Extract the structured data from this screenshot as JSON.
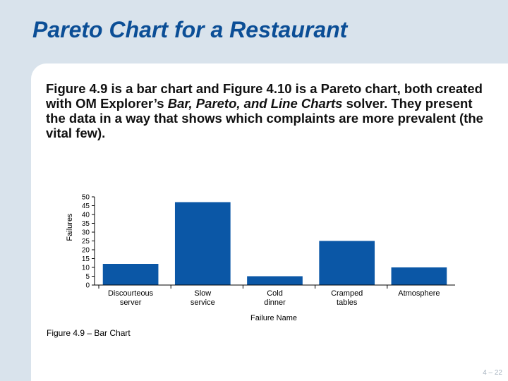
{
  "slide": {
    "title": "Pareto Chart for a Restaurant",
    "body_before": "Figure 4.9 is a bar chart and Figure 4.10 is a Pareto chart, both created with OM Explorer’s ",
    "body_emphasis": "Bar, Pareto, and Line Charts",
    "body_after": " solver. They present the data in a way that shows which complaints are more prevalent (the vital few).",
    "caption": "Figure 4.9 –  Bar Chart",
    "page_number": "4 – 22"
  },
  "chart_data": {
    "type": "bar",
    "categories": [
      [
        "Discourteous",
        "server"
      ],
      [
        "Slow",
        "service"
      ],
      [
        "Cold",
        "dinner"
      ],
      [
        "Cramped",
        "tables"
      ],
      [
        "Atmosphere"
      ]
    ],
    "values": [
      12,
      47,
      5,
      25,
      10
    ],
    "title": "",
    "xlabel": "Failure Name",
    "ylabel": "Failures",
    "ylim": [
      0,
      50
    ],
    "yticks": [
      0,
      5,
      10,
      15,
      20,
      25,
      30,
      35,
      40,
      45,
      50
    ],
    "grid": false,
    "bar_color": "#0b57a6"
  }
}
